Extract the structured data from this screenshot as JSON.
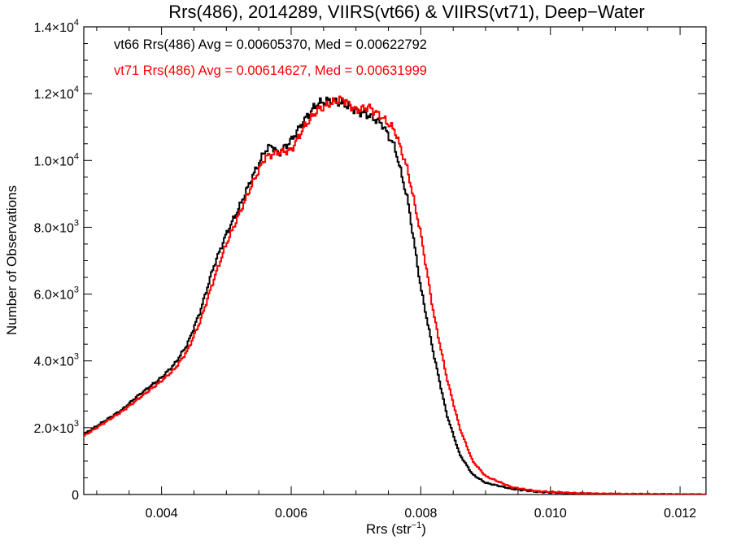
{
  "chart_data": {
    "type": "line",
    "title": "Rrs(486), 2014289, VIIRS(vt66) & VIIRS(vt71), Deep−Water",
    "xlabel": {
      "text": "Rrs (str",
      "sup": "−1",
      "suffix": ")"
    },
    "ylabel": "Number of Observations",
    "xlim": [
      0.0028,
      0.0124
    ],
    "ylim": [
      0,
      14000
    ],
    "grid": false,
    "x_ticks": [
      {
        "value": 0.004,
        "label": "0.004"
      },
      {
        "value": 0.006,
        "label": "0.006"
      },
      {
        "value": 0.008,
        "label": "0.008"
      },
      {
        "value": 0.01,
        "label": "0.010"
      },
      {
        "value": 0.012,
        "label": "0.012"
      }
    ],
    "y_ticks": [
      {
        "value": 0,
        "mant": "0",
        "exp": ""
      },
      {
        "value": 2000,
        "mant": "2.0×10",
        "exp": "3"
      },
      {
        "value": 4000,
        "mant": "4.0×10",
        "exp": "3"
      },
      {
        "value": 6000,
        "mant": "6.0×10",
        "exp": "3"
      },
      {
        "value": 8000,
        "mant": "8.0×10",
        "exp": "3"
      },
      {
        "value": 10000,
        "mant": "1.0×10",
        "exp": "4"
      },
      {
        "value": 12000,
        "mant": "1.2×10",
        "exp": "4"
      },
      {
        "value": 14000,
        "mant": "1.4×10",
        "exp": "4"
      }
    ],
    "series": [
      {
        "name": "vt66",
        "color": "#000000",
        "annotation": "vt66 Rrs(486) Avg = 0.00605370, Med = 0.00622792",
        "points": [
          [
            0.0028,
            1800
          ],
          [
            0.003,
            2050
          ],
          [
            0.0032,
            2300
          ],
          [
            0.0034,
            2550
          ],
          [
            0.0036,
            2900
          ],
          [
            0.0038,
            3200
          ],
          [
            0.004,
            3500
          ],
          [
            0.0042,
            3900
          ],
          [
            0.0044,
            4500
          ],
          [
            0.0046,
            5500
          ],
          [
            0.0048,
            6800
          ],
          [
            0.005,
            7800
          ],
          [
            0.0052,
            8600
          ],
          [
            0.0054,
            9500
          ],
          [
            0.0056,
            10300
          ],
          [
            0.0057,
            10450
          ],
          [
            0.0058,
            10200
          ],
          [
            0.006,
            10600
          ],
          [
            0.0062,
            11200
          ],
          [
            0.0064,
            11700
          ],
          [
            0.0066,
            11800
          ],
          [
            0.0068,
            11700
          ],
          [
            0.007,
            11500
          ],
          [
            0.0072,
            11350
          ],
          [
            0.0074,
            11100
          ],
          [
            0.0076,
            10400
          ],
          [
            0.0078,
            8800
          ],
          [
            0.008,
            6200
          ],
          [
            0.0082,
            4200
          ],
          [
            0.0084,
            2400
          ],
          [
            0.0086,
            1200
          ],
          [
            0.0088,
            600
          ],
          [
            0.009,
            350
          ],
          [
            0.0094,
            170
          ],
          [
            0.0098,
            80
          ],
          [
            0.0104,
            30
          ],
          [
            0.0112,
            10
          ],
          [
            0.0124,
            0
          ]
        ]
      },
      {
        "name": "vt71",
        "color": "#ff0000",
        "annotation": "vt71 Rrs(486) Avg = 0.00614627, Med = 0.00631999",
        "points": [
          [
            0.0028,
            1750
          ],
          [
            0.003,
            2000
          ],
          [
            0.0032,
            2250
          ],
          [
            0.0034,
            2500
          ],
          [
            0.0036,
            2800
          ],
          [
            0.0038,
            3100
          ],
          [
            0.004,
            3400
          ],
          [
            0.0042,
            3750
          ],
          [
            0.0044,
            4300
          ],
          [
            0.0046,
            5200
          ],
          [
            0.0048,
            6400
          ],
          [
            0.005,
            7500
          ],
          [
            0.0052,
            8400
          ],
          [
            0.0054,
            9300
          ],
          [
            0.0056,
            10100
          ],
          [
            0.0058,
            10250
          ],
          [
            0.006,
            10300
          ],
          [
            0.0062,
            11000
          ],
          [
            0.0064,
            11500
          ],
          [
            0.0066,
            11700
          ],
          [
            0.0068,
            11850
          ],
          [
            0.007,
            11500
          ],
          [
            0.0072,
            11600
          ],
          [
            0.0074,
            11300
          ],
          [
            0.0076,
            10900
          ],
          [
            0.0078,
            9700
          ],
          [
            0.008,
            7800
          ],
          [
            0.0082,
            5400
          ],
          [
            0.0084,
            3500
          ],
          [
            0.0086,
            2000
          ],
          [
            0.0088,
            1000
          ],
          [
            0.009,
            550
          ],
          [
            0.0094,
            220
          ],
          [
            0.0098,
            100
          ],
          [
            0.0104,
            40
          ],
          [
            0.0112,
            12
          ],
          [
            0.0124,
            0
          ]
        ]
      }
    ]
  }
}
